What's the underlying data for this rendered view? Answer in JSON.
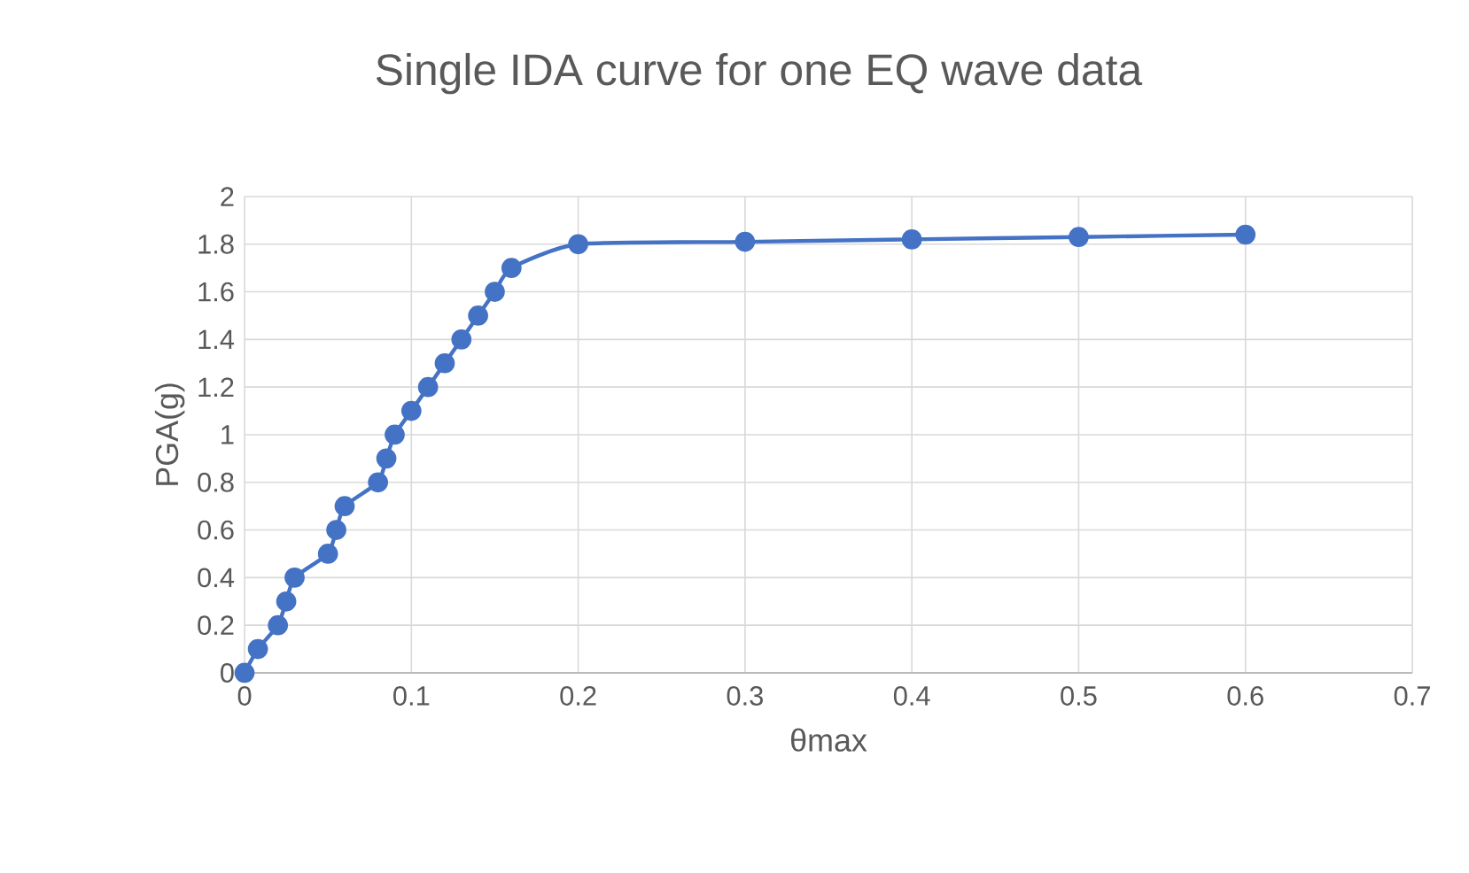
{
  "chart_data": {
    "type": "line",
    "title": "Single IDA curve for one EQ wave data",
    "xlabel": "θmax",
    "ylabel": "PGA(g)",
    "x": [
      0,
      0.008,
      0.02,
      0.025,
      0.03,
      0.05,
      0.055,
      0.06,
      0.08,
      0.085,
      0.09,
      0.1,
      0.11,
      0.12,
      0.13,
      0.14,
      0.15,
      0.16,
      0.2,
      0.3,
      0.4,
      0.5,
      0.6
    ],
    "series": [
      {
        "color": "#4472c4",
        "values": [
          0,
          0.1,
          0.2,
          0.3,
          0.4,
          0.5,
          0.6,
          0.7,
          0.8,
          0.9,
          1.0,
          1.1,
          1.2,
          1.3,
          1.4,
          1.5,
          1.6,
          1.7,
          1.8,
          1.81,
          1.82,
          1.83,
          1.84
        ]
      }
    ],
    "xlim": [
      0,
      0.7
    ],
    "xticks": [
      0,
      0.1,
      0.2,
      0.3,
      0.4,
      0.5,
      0.6,
      0.7
    ],
    "ylim": [
      0,
      2
    ],
    "yticks": [
      0,
      0.2,
      0.4,
      0.6,
      0.8,
      1,
      1.2,
      1.4,
      1.6,
      1.8,
      2
    ],
    "grid": true,
    "marker": "circle",
    "line_style": "solid"
  }
}
